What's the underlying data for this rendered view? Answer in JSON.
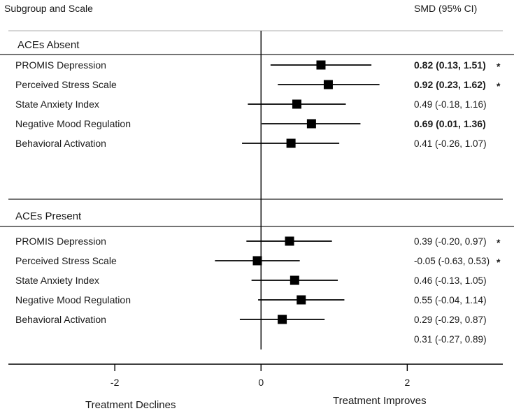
{
  "header": {
    "left": "Subgroup and Scale",
    "right": "SMD (95% CI)"
  },
  "chart_data": {
    "type": "forest",
    "xlim": [
      -3.57,
      3.46
    ],
    "ticks": [
      -2,
      0,
      2
    ],
    "tick_labels": [
      "-2",
      "0",
      "2"
    ],
    "xlabel_left": "Treatment Declines",
    "xlabel_right": "Treatment Improves",
    "groups": [
      {
        "name": "ACEs Absent",
        "rows": [
          {
            "label": "PROMIS Depression",
            "est": 0.82,
            "lo": 0.13,
            "hi": 1.51,
            "ci_text": "0.82 (0.13, 1.51)",
            "bold": true,
            "star": "*"
          },
          {
            "label": "Perceived Stress Scale",
            "est": 0.92,
            "lo": 0.23,
            "hi": 1.62,
            "ci_text": "0.92 (0.23, 1.62)",
            "bold": true,
            "star": "*"
          },
          {
            "label": "State Anxiety Index",
            "est": 0.49,
            "lo": -0.18,
            "hi": 1.16,
            "ci_text": "0.49 (-0.18, 1.16)",
            "bold": false,
            "star": ""
          },
          {
            "label": "Negative Mood Regulation",
            "est": 0.69,
            "lo": 0.01,
            "hi": 1.36,
            "ci_text": "0.69 (0.01, 1.36)",
            "bold": true,
            "star": ""
          },
          {
            "label": "Behavioral Activation",
            "est": 0.41,
            "lo": -0.26,
            "hi": 1.07,
            "ci_text": "0.41 (-0.26, 1.07)",
            "bold": false,
            "star": ""
          }
        ]
      },
      {
        "name": "ACEs Present",
        "rows": [
          {
            "label": "PROMIS Depression",
            "est": 0.39,
            "lo": -0.2,
            "hi": 0.97,
            "ci_text": "0.39 (-0.20, 0.97)",
            "bold": false,
            "star": "*"
          },
          {
            "label": "Perceived Stress Scale",
            "est": -0.05,
            "lo": -0.63,
            "hi": 0.53,
            "ci_text": "-0.05 (-0.63, 0.53)",
            "bold": false,
            "star": "*"
          },
          {
            "label": "State Anxiety Index",
            "est": 0.46,
            "lo": -0.13,
            "hi": 1.05,
            "ci_text": "0.46 (-0.13, 1.05)",
            "bold": false,
            "star": ""
          },
          {
            "label": "Negative Mood Regulation",
            "est": 0.55,
            "lo": -0.04,
            "hi": 1.14,
            "ci_text": "0.55 (-0.04, 1.14)",
            "bold": false,
            "star": ""
          },
          {
            "label": "Behavioral Activation",
            "est": 0.29,
            "lo": -0.29,
            "hi": 0.87,
            "ci_text": "0.29 (-0.29, 0.87)",
            "bold": false,
            "star": ""
          },
          {
            "label": "",
            "est": null,
            "lo": null,
            "hi": null,
            "ci_text": "0.31 (-0.27, 0.89)",
            "bold": false,
            "star": ""
          }
        ]
      }
    ]
  }
}
